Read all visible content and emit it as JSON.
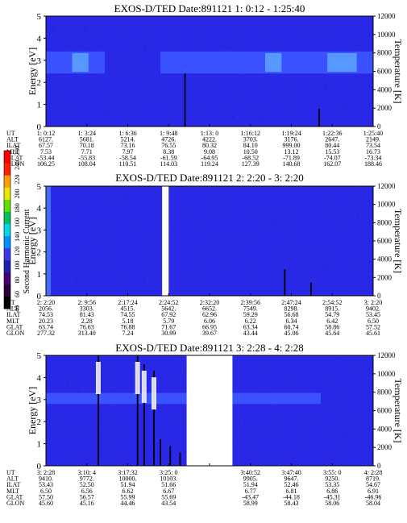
{
  "chart_data": [
    {
      "type": "heatmap",
      "title": "EXOS-D/TED   Date:891121  1: 0:12 - 1:25:40",
      "ylabel": "Energy [eV]",
      "ylabel_right": "Temperature [K]",
      "ylim": [
        0,
        5
      ],
      "ylim_right": [
        0,
        12000
      ],
      "yticks": [
        "0",
        "1",
        "2",
        "3",
        "4",
        "5"
      ],
      "yticks_right": [
        "0",
        "2000",
        "4000",
        "6000",
        "8000",
        "10000",
        "12000"
      ],
      "row_labels": [
        "UT",
        "ALT",
        "ILAT",
        "MLT",
        "GLAT",
        "GLON"
      ],
      "columns": [
        [
          "1: 0:12",
          "6127.",
          "67.57",
          "7.53",
          "-53.44",
          "106.25"
        ],
        [
          "1: 3:24",
          "5681.",
          "70.18",
          "7.71",
          "-55.83",
          "108.04"
        ],
        [
          "1: 6:36",
          "5214.",
          "73.16",
          "7.97",
          "-58.54",
          "110.51"
        ],
        [
          "1: 9:48",
          "4726.",
          "76.55",
          "8.38",
          "-61.59",
          "114.03"
        ],
        [
          "1:13: 0",
          "4222.",
          "80.32",
          "9.08",
          "-64.95",
          "119.24"
        ],
        [
          "1:16:12",
          "3703.",
          "84.10",
          "10.50",
          "-68.52",
          "127.39"
        ],
        [
          "1:19:24",
          "3176.",
          "999.00",
          "13.12",
          "-71.89",
          "140.68"
        ],
        [
          "1:22:36",
          "2647.",
          "80.44",
          "15.53",
          "-74.07",
          "162.07"
        ],
        [
          "1:25:40",
          "2149.",
          "73.54",
          "16.73",
          "-73.34",
          "188.46"
        ]
      ],
      "band": {
        "energy_low": 2.4,
        "energy_high": 3.4,
        "spans": [
          [
            0.0,
            0.18
          ],
          [
            0.35,
            1.0
          ]
        ],
        "hot": [
          [
            0.08,
            0.13
          ],
          [
            0.67,
            0.72
          ],
          [
            0.86,
            0.95
          ]
        ]
      },
      "spikes": [
        {
          "t": 0.425,
          "e_top": 2.4
        },
        {
          "t": 0.835,
          "e_top": 0.8
        }
      ],
      "gaps": []
    },
    {
      "type": "heatmap",
      "title": "EXOS-D/TED   Date:891121  2: 2:20 - 3: 2:20",
      "ylabel": "Energy [eV]",
      "ylabel_right": "Temperature [K]",
      "ylim": [
        0,
        5
      ],
      "ylim_right": [
        0,
        12000
      ],
      "yticks": [
        "0",
        "1",
        "2",
        "3",
        "4",
        "5"
      ],
      "yticks_right": [
        "0",
        "2000",
        "4000",
        "6000",
        "8000",
        "10000",
        "12000"
      ],
      "row_labels": [
        "UT",
        "ALT",
        "ILAT",
        "MLT",
        "GLAT",
        "GLON"
      ],
      "columns": [
        [
          "2: 2:20",
          "2056.",
          "74.53",
          "20.23",
          "63.74",
          "277.32"
        ],
        [
          "2: 9:56",
          "3303.",
          "81.43",
          "2.28",
          "76.63",
          "313.40"
        ],
        [
          "2:17:24",
          "4515.",
          "74.55",
          "5.18",
          "76.88",
          "7.24"
        ],
        [
          "2:24:52",
          "5642.",
          "67.92",
          "5.79",
          "71.67",
          "30.99"
        ],
        [
          "2:32:20",
          "6652.",
          "62.96",
          "6.06",
          "66.95",
          "39.67"
        ],
        [
          "2:39:56",
          "7549.",
          "59.29",
          "6.22",
          "63.34",
          "43.44"
        ],
        [
          "2:47:24",
          "8298.",
          "56.68",
          "6.34",
          "60.74",
          "45.06"
        ],
        [
          "2:54:52",
          "8915.",
          "54.79",
          "6.42",
          "58.86",
          "45.64"
        ],
        [
          "3: 2:20",
          "9402.",
          "53.45",
          "6.50",
          "57.52",
          "45.61"
        ]
      ],
      "band": null,
      "spikes": [
        {
          "t": 0.73,
          "e_top": 1.2
        },
        {
          "t": 0.81,
          "e_top": 0.6
        }
      ],
      "gaps": [
        [
          0.355,
          0.375
        ]
      ]
    },
    {
      "type": "heatmap",
      "title": "EXOS-D/TED   Date:891121  3: 2:28 - 4: 2:28",
      "ylabel": "Energy [eV]",
      "ylabel_right": "Temperature [K]",
      "ylim": [
        0,
        5
      ],
      "ylim_right": [
        0,
        12000
      ],
      "yticks": [
        "0",
        "1",
        "2",
        "3",
        "4",
        "5"
      ],
      "yticks_right": [
        "0",
        "2000",
        "4000",
        "6000",
        "8000",
        "10000",
        "12000"
      ],
      "row_labels": [
        "UT",
        "ALT",
        "ILAT",
        "MLT",
        "GLAT",
        "GLON"
      ],
      "columns": [
        [
          "3: 2:28",
          "9410.",
          "53.43",
          "6.50",
          "57.50",
          "45.60"
        ],
        [
          "3:10: 4",
          "9772.",
          "52.50",
          "6.56",
          "56.57",
          "45.16"
        ],
        [
          "3:17:32",
          "10000.",
          "51.94",
          "6.62",
          "55.99",
          "44.46"
        ],
        [
          "3:25: 0",
          "10103.",
          "51.66",
          "6.67",
          "55.69",
          "43.54"
        ],
        [
          "",
          "",
          "",
          "",
          "",
          ""
        ],
        [
          "3:40:52",
          "9905.",
          "51.94",
          "6.77",
          "-43.47",
          "58.99"
        ],
        [
          "3:47:40",
          "9647.",
          "52.46",
          "6.81",
          "-44.18",
          "58.43"
        ],
        [
          "3:55: 0",
          "9250.",
          "53.35",
          "6.86",
          "-45.31",
          "58.06"
        ],
        [
          "4: 2:28",
          "8719.",
          "54.67",
          "6.91",
          "-46.96",
          "58.04"
        ]
      ],
      "band": {
        "energy_low": 2.8,
        "energy_high": 3.3,
        "spans": [
          [
            0.0,
            0.43
          ],
          [
            0.57,
            0.84
          ]
        ],
        "hot": []
      },
      "spikes": [
        {
          "t": 0.16,
          "e_top": 5.2
        },
        {
          "t": 0.28,
          "e_top": 5.2
        },
        {
          "t": 0.3,
          "e_top": 4.6
        },
        {
          "t": 0.33,
          "e_top": 4.3
        },
        {
          "t": 0.35,
          "e_top": 1.2
        },
        {
          "t": 0.38,
          "e_top": 0.9
        },
        {
          "t": 0.41,
          "e_top": 0.6
        }
      ],
      "gaps": [
        [
          0.43,
          0.57
        ]
      ]
    }
  ],
  "colorbar": {
    "label": "Second Harmonic Current",
    "ticks": [
      "40",
      "60",
      "80",
      "100",
      "120",
      "140",
      "160",
      "180",
      "200",
      "220",
      "240",
      "250"
    ],
    "colors": [
      "#000000",
      "#2a0038",
      "#4a0070",
      "#2020b0",
      "#3a3ae8",
      "#0090ff",
      "#00d8e8",
      "#00c060",
      "#60e000",
      "#e8e800",
      "#ffa000",
      "#ff2000",
      "#ff0000"
    ]
  }
}
